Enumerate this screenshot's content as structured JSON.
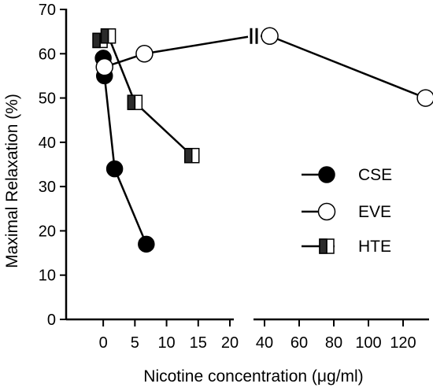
{
  "chart_data": {
    "type": "line",
    "xlabel": "Nicotine concentration (μg/ml)",
    "ylabel": "Maximal Relaxation (%)",
    "ylim": [
      0,
      70
    ],
    "yticks": [
      0,
      10,
      20,
      30,
      40,
      50,
      60,
      70
    ],
    "x_axis_break": true,
    "x_segments": [
      {
        "range": [
          -3,
          20
        ],
        "ticks": [
          0,
          5,
          10,
          15,
          20
        ]
      },
      {
        "range": [
          35,
          135
        ],
        "ticks": [
          40,
          60,
          80,
          100,
          120
        ]
      }
    ],
    "xtick_labels": [
      "0",
      "5",
      "10",
      "15",
      "20",
      "40",
      "60",
      "80",
      "100",
      "120"
    ],
    "legend_position": "right",
    "series": [
      {
        "name": "CSE",
        "marker": "filled-circle",
        "points": [
          [
            0,
            59
          ],
          [
            0.2,
            55
          ],
          [
            1.8,
            34
          ],
          [
            6.8,
            17
          ]
        ]
      },
      {
        "name": "EVE",
        "marker": "open-circle",
        "points": [
          [
            0.2,
            57
          ],
          [
            6.5,
            60
          ],
          [
            43,
            64
          ],
          [
            133,
            50
          ]
        ],
        "broken_after_index": 1
      },
      {
        "name": "HTE",
        "marker": "half-filled-square",
        "points": [
          [
            -0.5,
            63
          ],
          [
            0.8,
            64
          ],
          [
            5,
            49
          ],
          [
            14,
            37
          ]
        ]
      }
    ],
    "colors": {
      "line": "#000000",
      "fill": "#000000",
      "open": "#ffffff"
    }
  }
}
